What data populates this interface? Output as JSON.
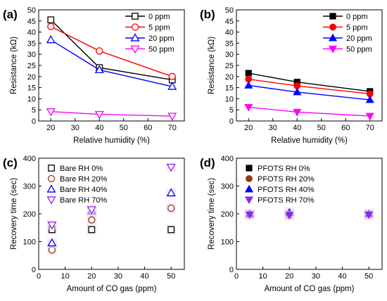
{
  "chart_data": [
    {
      "panel": "(a)",
      "type": "line",
      "xlabel": "Relative humidity (%)",
      "ylabel": "Resistance (kΩ)",
      "xlim": [
        15,
        75
      ],
      "ylim": [
        0,
        50
      ],
      "xticks": [
        20,
        30,
        40,
        50,
        60,
        70
      ],
      "yticks": [
        0,
        5,
        10,
        15,
        20,
        25,
        30,
        35,
        40,
        45,
        50
      ],
      "legend_position": "top-right",
      "x": [
        20,
        40,
        70
      ],
      "series": [
        {
          "name": "0 ppm",
          "values": [
            45.5,
            24,
            18.5
          ],
          "color": "#000000",
          "marker": "square",
          "filled": false
        },
        {
          "name": "5 ppm",
          "values": [
            42.5,
            31.5,
            20
          ],
          "color": "#ff0000",
          "marker": "circle",
          "filled": false
        },
        {
          "name": "20 ppm",
          "values": [
            36.5,
            23,
            15.5
          ],
          "color": "#0000ff",
          "marker": "triangle-up",
          "filled": false
        },
        {
          "name": "50 ppm",
          "values": [
            4.2,
            3,
            2.2
          ],
          "color": "#ff00ff",
          "marker": "triangle-down",
          "filled": false
        }
      ]
    },
    {
      "panel": "(b)",
      "type": "line",
      "xlabel": "Relative humidity (%)",
      "ylabel": "Resistance (kΩ)",
      "xlim": [
        15,
        75
      ],
      "ylim": [
        0,
        50
      ],
      "xticks": [
        20,
        30,
        40,
        50,
        60,
        70
      ],
      "yticks": [
        0,
        5,
        10,
        15,
        20,
        25,
        30,
        35,
        40,
        45,
        50
      ],
      "legend_position": "top-right",
      "x": [
        20,
        40,
        70
      ],
      "series": [
        {
          "name": "0 ppm",
          "values": [
            21.5,
            17.5,
            13.3
          ],
          "color": "#000000",
          "marker": "square",
          "filled": true
        },
        {
          "name": "5 ppm",
          "values": [
            18.8,
            15.8,
            12.2
          ],
          "color": "#ff0000",
          "marker": "circle",
          "filled": true
        },
        {
          "name": "20 ppm",
          "values": [
            16,
            13,
            9.5
          ],
          "color": "#0000ff",
          "marker": "triangle-up",
          "filled": true
        },
        {
          "name": "50 ppm",
          "values": [
            6.2,
            4,
            2.2
          ],
          "color": "#ff00ff",
          "marker": "triangle-down",
          "filled": true
        }
      ]
    },
    {
      "panel": "(c)",
      "type": "scatter",
      "xlabel": "Amount of CO gas (ppm)",
      "ylabel": "Recovery time (sec)",
      "xlim": [
        0,
        55
      ],
      "ylim": [
        0,
        400
      ],
      "xticks": [
        0,
        10,
        20,
        30,
        40,
        50
      ],
      "yticks": [
        0,
        100,
        200,
        300,
        400
      ],
      "legend_position": "top-left",
      "x": [
        5,
        20,
        50
      ],
      "series": [
        {
          "name": "Bare RH 0%",
          "values": [
            143,
            143,
            143
          ],
          "color": "#000000",
          "marker": "square",
          "filled": false
        },
        {
          "name": "Bare RH 20%",
          "values": [
            70,
            178,
            220
          ],
          "color": "#8b3a1a",
          "marker": "circle",
          "filled": false
        },
        {
          "name": "Bare RH 40%",
          "values": [
            95,
            210,
            275
          ],
          "color": "#0000ff",
          "marker": "triangle-up",
          "filled": false
        },
        {
          "name": "Bare RH 70%",
          "values": [
            160,
            215,
            368
          ],
          "color": "#8a2be2",
          "marker": "triangle-down",
          "filled": false
        }
      ]
    },
    {
      "panel": "(d)",
      "type": "scatter",
      "xlabel": "Amount of CO gas (ppm)",
      "ylabel": "Recovery time (sec)",
      "xlim": [
        0,
        55
      ],
      "ylim": [
        0,
        400
      ],
      "xticks": [
        0,
        10,
        20,
        30,
        40,
        50
      ],
      "yticks": [
        0,
        100,
        200,
        300,
        400
      ],
      "legend_position": "top-left",
      "x": [
        5,
        20,
        50
      ],
      "series": [
        {
          "name": "PFOTS RH 0%",
          "values": [
            197,
            200,
            197
          ],
          "color": "#000000",
          "marker": "square",
          "filled": true
        },
        {
          "name": "PFOTS RH 20%",
          "values": [
            197,
            195,
            197
          ],
          "color": "#8b3a1a",
          "marker": "circle",
          "filled": true
        },
        {
          "name": "PFOTS RH 40%",
          "values": [
            200,
            205,
            200
          ],
          "color": "#0000ff",
          "marker": "triangle-up",
          "filled": true
        },
        {
          "name": "PFOTS RH 70%",
          "values": [
            197,
            195,
            197
          ],
          "color": "#8a2be2",
          "marker": "triangle-down",
          "filled": true
        }
      ]
    }
  ]
}
